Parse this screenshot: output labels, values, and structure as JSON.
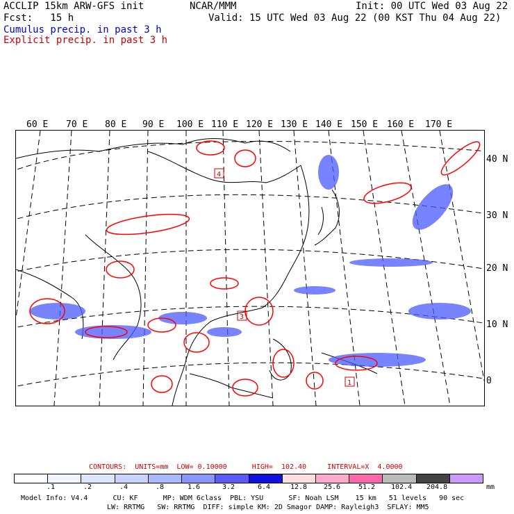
{
  "header": {
    "model": "ACCLIP 15km ARW-GFS init",
    "org": "NCAR/MMM",
    "init": "Init: 00 UTC Wed 03 Aug 22",
    "fcst": "Fcst:   15 h",
    "valid": "Valid: 15 UTC Wed 03 Aug 22 (00 KST Thu 04 Aug 22)",
    "cumulus": "Cumulus precip. in past 3 h",
    "explicit": "Explicit precip. in past 3 h"
  },
  "map": {
    "lon_labels": [
      "60 E",
      "70 E",
      "80 E",
      "90 E",
      "100 E",
      "110 E",
      "120 E",
      "130 E",
      "140 E",
      "150 E",
      "160 E",
      "170 E"
    ],
    "lat_labels": [
      "40 N",
      "30 N",
      "20 N",
      "10 N",
      "0"
    ],
    "markers": [
      {
        "label": "4",
        "name": "marker-4"
      },
      {
        "label": "3",
        "name": "marker-3"
      },
      {
        "label": "1",
        "name": "marker-1"
      }
    ]
  },
  "legend": {
    "contours": "CONTOURS:  UNITS=mm  LOW= 0.10000      HIGH=  102.40     INTERVAL=X  4.0000",
    "values": [
      ".1",
      ".2",
      ".4",
      ".8",
      "1.6",
      "3.2",
      "6.4",
      "12.8",
      "25.6",
      "51.2",
      "102.4",
      "204.8"
    ],
    "unit": "mm",
    "colors": [
      "#ffffff",
      "#f0f4ff",
      "#dce6ff",
      "#c8d4ff",
      "#aab8ff",
      "#8a96ff",
      "#5a5aff",
      "#1010e0",
      "#ffdede",
      "#ffaacc",
      "#ff66aa",
      "#bbbbbb",
      "#444444",
      "#cc99ff"
    ]
  },
  "footer": {
    "line1": "Model Info: V4.4      CU: KF      MP: WDM 6class  PBL: YSU      SF: Noah LSM    15 km   51 levels   90 sec",
    "line2": "LW: RRTMG   SW: RRTMG  DIFF: simple KM: 2D Smagor DAMP: Rayleigh3  SFLAY: MM5"
  }
}
